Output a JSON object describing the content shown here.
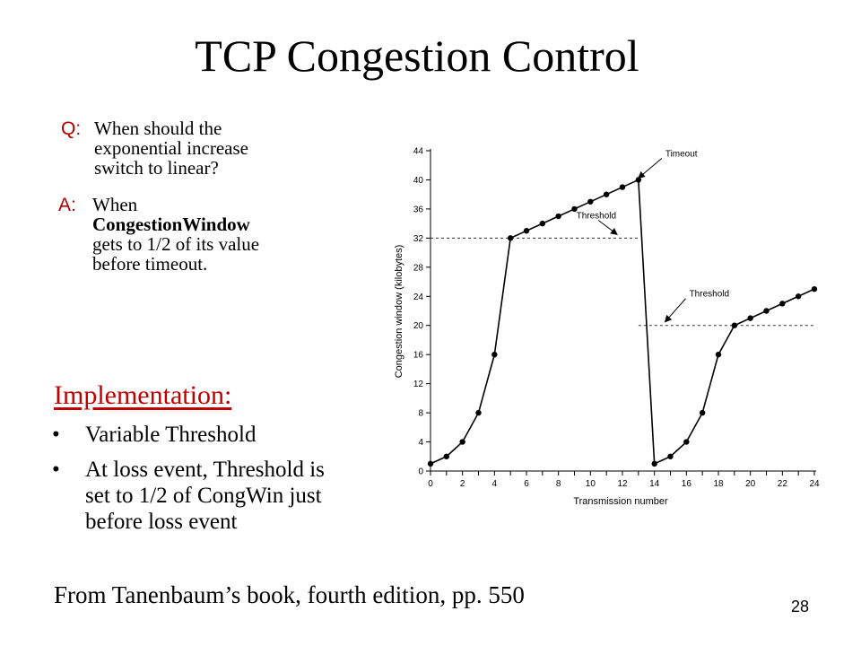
{
  "slide": {
    "title": "TCP Congestion Control",
    "question_tag": "Q:",
    "question_lines": [
      "When should the",
      "exponential increase",
      "switch to linear?"
    ],
    "answer_tag": "A:",
    "answer_lines": [
      "When",
      "CongestionWindow",
      "gets to 1/2 of its value",
      "before timeout."
    ],
    "implementation_heading": "Implementation:",
    "bullets": [
      [
        "Variable Threshold"
      ],
      [
        "At loss event, Threshold is",
        "set to 1/2 of CongWin just",
        "before loss event"
      ]
    ],
    "source": "From Tanenbaum’s book, fourth edition, pp. 550",
    "page_number": "28"
  },
  "chart_data": {
    "type": "line",
    "xlabel": "Transmission number",
    "ylabel": "Congestion window (kilobytes)",
    "xlim": [
      0,
      24
    ],
    "ylim": [
      0,
      44
    ],
    "xticks": [
      0,
      2,
      4,
      6,
      8,
      10,
      12,
      14,
      16,
      18,
      20,
      22,
      24
    ],
    "yticks": [
      0,
      4,
      8,
      12,
      16,
      20,
      24,
      28,
      32,
      36,
      40,
      44
    ],
    "grid": false,
    "series": [
      {
        "x": [
          0,
          1,
          2,
          3,
          4,
          5,
          6,
          7,
          8,
          9,
          10,
          11,
          12,
          13,
          14,
          15,
          16,
          17,
          18,
          19,
          20,
          21,
          22,
          23,
          24
        ],
        "values": [
          1,
          2,
          4,
          8,
          16,
          32,
          33,
          34,
          35,
          36,
          37,
          38,
          39,
          40,
          1,
          2,
          4,
          8,
          16,
          20,
          21,
          22,
          23,
          24,
          25
        ]
      }
    ],
    "threshold_lines": [
      {
        "label": "Threshold",
        "y": 32,
        "x_range": [
          0,
          13
        ]
      },
      {
        "label": "Threshold",
        "y": 20,
        "x_range": [
          13,
          24
        ]
      }
    ],
    "annotations": [
      {
        "text": "Timeout",
        "x": 13,
        "y": 40
      },
      {
        "text": "Threshold",
        "x": 11.5,
        "y": 32
      },
      {
        "text": "Threshold",
        "x": 14.5,
        "y": 20
      }
    ]
  }
}
